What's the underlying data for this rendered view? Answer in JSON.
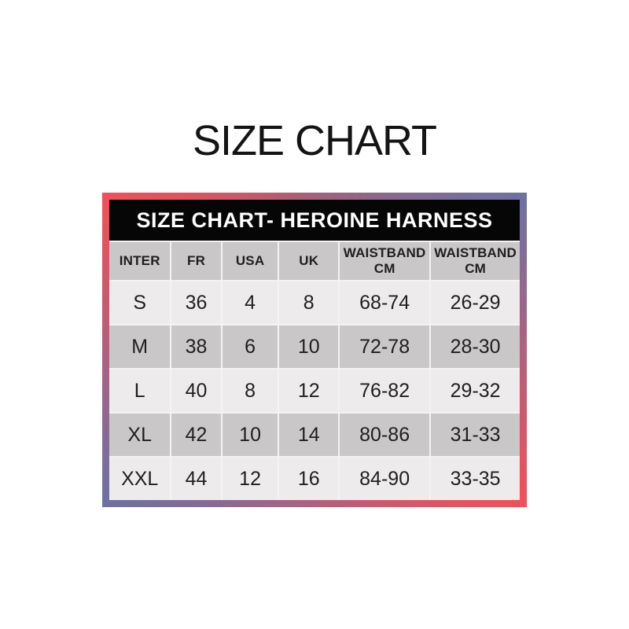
{
  "page_title": "SIZE CHART",
  "table_bar_title": "SIZE CHART- HEROINE HARNESS",
  "chart_data": {
    "type": "table",
    "title": "SIZE CHART- HEROINE HARNESS",
    "columns": [
      "INTER",
      "FR",
      "USA",
      "UK",
      "WAISTBAND CM",
      "WAISTBAND CM"
    ],
    "rows": [
      [
        "S",
        "36",
        "4",
        "8",
        "68-74",
        "26-29"
      ],
      [
        "M",
        "38",
        "6",
        "10",
        "72-78",
        "28-30"
      ],
      [
        "L",
        "40",
        "8",
        "12",
        "76-82",
        "29-32"
      ],
      [
        "XL",
        "42",
        "10",
        "14",
        "80-86",
        "31-33"
      ],
      [
        "XXL",
        "44",
        "12",
        "16",
        "84-90",
        "33-35"
      ]
    ],
    "layout": {
      "row_shading": "alternating light/dark starting light",
      "header_row_bg": "dark gray",
      "title_bar": "black with white bold text",
      "frame": "red-blue gradient border"
    }
  },
  "colors": {
    "border_red": "#f0505a",
    "border_blue": "#6f71a1",
    "header_bar_bg": "#060606",
    "header_bar_text": "#ffffff",
    "column_header_bg": "#c9c7c8",
    "row_light_bg": "#edebec",
    "row_dark_bg": "#c9c7c8",
    "text": "#1f1f1f",
    "page_bg": "#ffffff"
  }
}
